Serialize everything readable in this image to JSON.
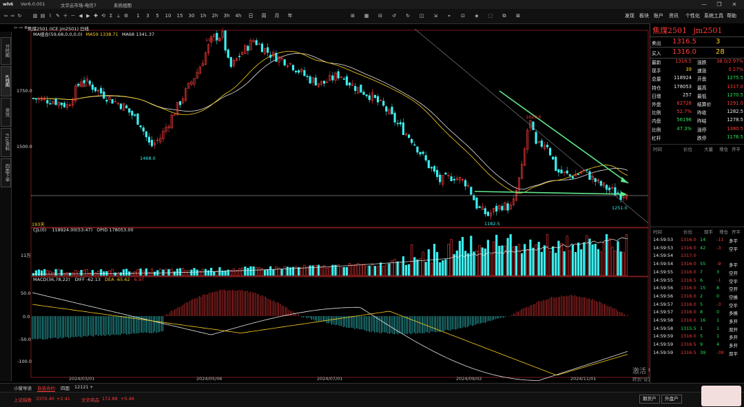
{
  "window": {
    "app": "Ver6.0.051",
    "title": "文华云市场-电信7",
    "menu": "系统组图",
    "logo": "wh6"
  },
  "toolbar": {
    "periods": [
      "1",
      "3",
      "5",
      "10",
      "15",
      "30",
      "1h",
      "2h",
      "3h",
      "4h",
      "日",
      "周",
      "月",
      "年"
    ],
    "extra_icons": [
      "分时",
      "K线",
      "指标",
      "画线",
      "放大",
      "缩小",
      "左移",
      "右移",
      "十字",
      "复权",
      "统计",
      "测量",
      "设置"
    ],
    "right_menu": [
      "发现",
      "板块",
      "账户",
      "资讯",
      "个性化",
      "系统工具",
      "帮助"
    ]
  },
  "left_rail": {
    "tabs": [
      {
        "label": "分时图",
        "active": false
      },
      {
        "label": "K线图",
        "active": true
      },
      {
        "label": "资讯",
        "active": false
      },
      {
        "label": "F10资料",
        "active": false
      },
      {
        "label": "四面下单",
        "active": false
      }
    ]
  },
  "chart": {
    "header": "焦煤2501 (ICE jm2501) 日线",
    "ma_legend": [
      {
        "text": "MA组合(59,68,0,0,0,0)",
        "color": "#e8e8e8"
      },
      {
        "text": "MA59 1338.71",
        "color": "#ffd21e"
      },
      {
        "text": "MA68 1341.37",
        "color": "#e8e8e8"
      }
    ],
    "price_axis": [
      "1750.0",
      "1500.0"
    ],
    "annotations": {
      "high": "1957.5",
      "p1769": "1769.0",
      "p1468": "1468.0",
      "low": "1182.5",
      "p1620": "1620.0",
      "p1251": "1251.0",
      "days": "193天"
    },
    "volume_legend": {
      "name": "CJL(0)",
      "values": "118924.00(53:47)",
      "opid": "OPID 178053.00"
    },
    "volume_axis": "11万",
    "macd_legend": {
      "name": "MACD(36,78,22)",
      "diff": "DIFF -62.13",
      "dea": "DEA -65.62",
      "macd": "6.97"
    },
    "macd_axis": [
      "50.0",
      "0.0",
      "-50.0",
      "-100.0"
    ],
    "dates": [
      "2024/03/01",
      "2024/05/06",
      "2024/07/01",
      "2024/09/02",
      "2024/11/01"
    ],
    "watermark": {
      "line1": "激活 Windows",
      "line2": "转到\"设置\"以激活 Windows。"
    }
  },
  "chart_data": {
    "type": "candlestick",
    "title": "焦煤2501 日线",
    "x": [
      "2024/03/01",
      "2024/05/06",
      "2024/07/01",
      "2024/09/02",
      "2024/11/01"
    ],
    "key_prices": {
      "high": 1957.5,
      "low": 1182.5,
      "last": 1316.0,
      "marks": [
        1769.0,
        1468.0,
        1620.0,
        1251.0
      ]
    },
    "ma": {
      "MA59": 1338.71,
      "MA68": 1341.37
    },
    "volume": {
      "CJL": 118924.0,
      "OPID": 178053.0
    },
    "macd": {
      "DIFF": -62.13,
      "DEA": -65.62,
      "MACD": 6.97
    },
    "ylim": [
      1150,
      2000
    ]
  },
  "quote": {
    "symbol": "焦煤2501",
    "code": "jm2501",
    "sell": {
      "label": "卖出",
      "price": "1316.5",
      "qty": "3"
    },
    "buy": {
      "label": "买入",
      "price": "1316.0",
      "qty": "28"
    },
    "rows": [
      {
        "l": "最新",
        "lv": "1316.5",
        "lc": "red",
        "r": "涨跌",
        "rv": "38.0/2.97%",
        "rc": "red"
      },
      {
        "l": "现手",
        "lv": "39",
        "lc": "yel",
        "r": "速涨",
        "rv": "0.27%",
        "rc": "red"
      },
      {
        "l": "总量",
        "lv": "118924",
        "lc": "wht",
        "r": "开盘",
        "rv": "1275.5",
        "rc": "grn"
      },
      {
        "l": "持仓",
        "lv": "178053",
        "lc": "wht",
        "r": "最高",
        "rv": "1317.0",
        "rc": "red"
      },
      {
        "l": "日增",
        "lv": "257",
        "lc": "wht",
        "r": "最低",
        "rv": "1270.5",
        "rc": "grn"
      },
      {
        "l": "外盘",
        "lv": "62728",
        "lc": "red",
        "r": "结算价",
        "rv": "1291.0",
        "rc": "red"
      },
      {
        "l": "比例",
        "lv": "52.7%",
        "lc": "red",
        "r": "昨收",
        "rv": "1282.5",
        "rc": "wht"
      },
      {
        "l": "内盘",
        "lv": "56196",
        "lc": "grn",
        "r": "昨结",
        "rv": "1278.5",
        "rc": "wht"
      },
      {
        "l": "比例",
        "lv": "47.3%",
        "lc": "grn",
        "r": "涨停",
        "rv": "1380.5",
        "rc": "red"
      },
      {
        "l": "杠杆",
        "lv": "",
        "lc": "wht",
        "r": "跌停",
        "rv": "1176.5",
        "rc": "grn"
      }
    ],
    "hdr1": [
      "时间",
      "价位",
      "大量",
      "增仓",
      "开平"
    ],
    "hdr2": [
      "时间",
      "价位",
      "现手",
      "增仓",
      "开平"
    ],
    "ticks": [
      [
        "14:59:53",
        "1316.0",
        "14",
        "-11",
        "多平"
      ],
      [
        "14:59:53",
        "1316.0",
        "42",
        "-3",
        "空平"
      ],
      [
        "14:59:54",
        "1317.0",
        "",
        "",
        ""
      ],
      [
        "14:59:54",
        "1316.0",
        "55",
        "-9",
        "多平"
      ],
      [
        "14:59:55",
        "1316.0",
        "7",
        "3",
        "空开"
      ],
      [
        "14:59:55",
        "1316.5",
        "6",
        "-1",
        "空平"
      ],
      [
        "14:59:56",
        "1316.0",
        "15",
        "8",
        "空开"
      ],
      [
        "14:59:56",
        "1316.0",
        "2",
        "0",
        "空换"
      ],
      [
        "14:59:57",
        "1316.0",
        "5",
        "-3",
        "空平"
      ],
      [
        "14:59:57",
        "1316.0",
        "8",
        "0",
        "多换"
      ],
      [
        "14:59:58",
        "1316.0",
        "16",
        "1",
        "多开"
      ],
      [
        "14:59:58",
        "1315.5",
        "1",
        "1",
        "双开"
      ],
      [
        "14:59:59",
        "1316.0",
        "5",
        "1",
        "多开"
      ],
      [
        "14:59:59",
        "1316.5",
        "9",
        "4",
        "多开"
      ],
      [
        "14:59:59",
        "1316.5",
        "39",
        "-39",
        "双平"
      ]
    ]
  },
  "bottom_tabs": [
    "小窗导读",
    "自选合约",
    "四面",
    "12121",
    "+"
  ],
  "status": {
    "sh_label": "上证指数",
    "sh_val": "3370.40",
    "sh_chg": "+2.41",
    "wh_label": "文华商品",
    "wh_val": "172.88",
    "wh_chg": "+0.46",
    "btn1": "期货户",
    "btn2": "外盘户"
  }
}
